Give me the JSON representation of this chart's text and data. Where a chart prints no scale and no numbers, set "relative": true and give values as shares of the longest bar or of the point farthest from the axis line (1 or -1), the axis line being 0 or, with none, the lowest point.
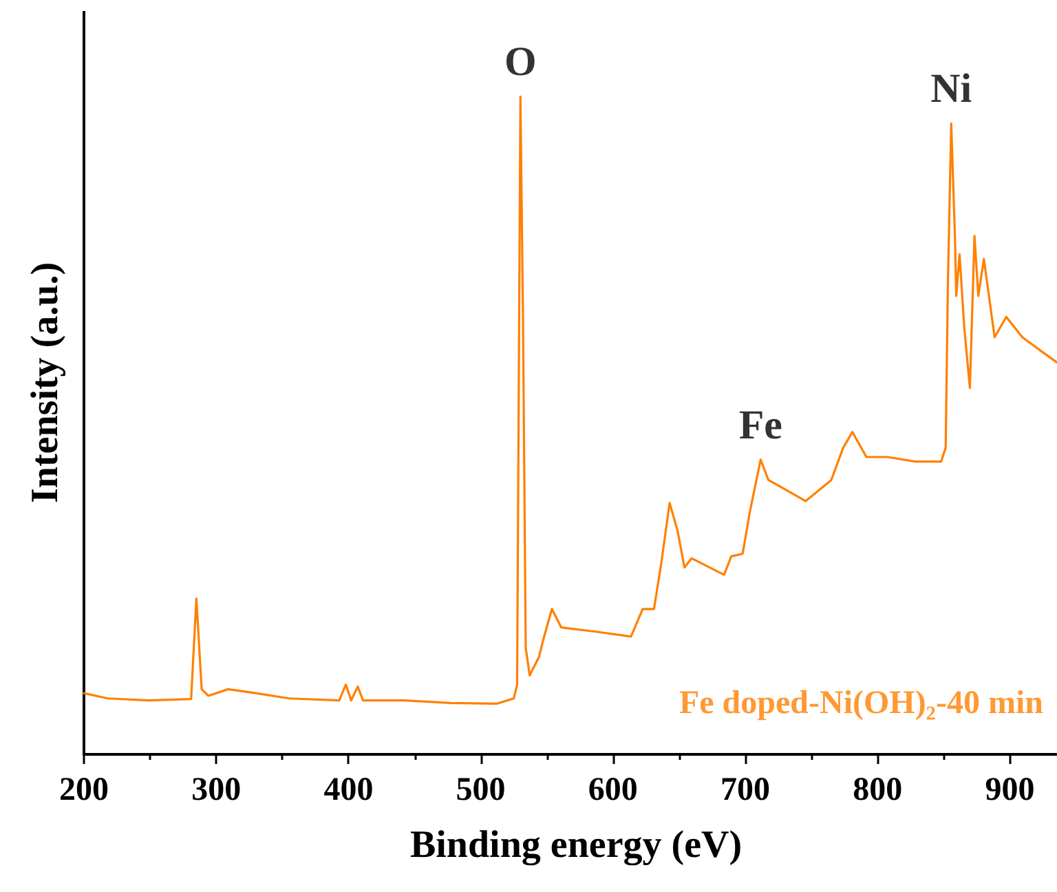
{
  "chart_data": {
    "type": "line",
    "xlabel": "Binding energy (eV)",
    "ylabel": "Intensity (a.u.)",
    "relative": true,
    "xlim": [
      200,
      944
    ],
    "xticks": [
      200,
      300,
      400,
      500,
      600,
      700,
      800,
      900
    ],
    "grid": false,
    "legend": false,
    "marker": "none",
    "line_style": "solid",
    "annotations": [
      {
        "text": "O",
        "x": 530,
        "y": 1.0
      },
      {
        "text": "Fe",
        "x": 711.6,
        "y": 0.448
      },
      {
        "text": "Ni",
        "x": 855.7,
        "y": 0.959
      }
    ],
    "series": [
      {
        "name": "Fe doped-Ni(OH)₂-40 min",
        "color": "#ff8000",
        "x": [
          200,
          218,
          249,
          281,
          285,
          289,
          294,
          309,
          330,
          355,
          393,
          398,
          402,
          407,
          411,
          442,
          477,
          512,
          525,
          527.5,
          529,
          530,
          532,
          534,
          537,
          544,
          547.5,
          553.8,
          560.8,
          589,
          613.6,
          622.4,
          631,
          636.5,
          642.8,
          648.8,
          654,
          659.4,
          684,
          689.4,
          698,
          703.4,
          711.6,
          717.5,
          730,
          745.7,
          765,
          774,
          781,
          791.6,
          807.5,
          828.6,
          848,
          851.5,
          853.2,
          855.7,
          858.5,
          859.5,
          862,
          865.6,
          869.8,
          873.3,
          876.2,
          880.4,
          888.5,
          897.3,
          909.5,
          923.7,
          943
        ],
        "values": [
          0.093,
          0.085,
          0.082,
          0.084,
          0.237,
          0.099,
          0.089,
          0.099,
          0.093,
          0.085,
          0.082,
          0.106,
          0.082,
          0.103,
          0.082,
          0.082,
          0.078,
          0.077,
          0.085,
          0.106,
          0.65,
          1.0,
          0.65,
          0.162,
          0.12,
          0.148,
          0.176,
          0.221,
          0.193,
          0.186,
          0.179,
          0.221,
          0.221,
          0.291,
          0.382,
          0.34,
          0.284,
          0.298,
          0.273,
          0.301,
          0.305,
          0.368,
          0.448,
          0.417,
          0.403,
          0.385,
          0.417,
          0.466,
          0.49,
          0.452,
          0.452,
          0.445,
          0.445,
          0.466,
          0.718,
          0.959,
          0.788,
          0.697,
          0.76,
          0.648,
          0.557,
          0.788,
          0.697,
          0.753,
          0.634,
          0.665,
          0.634,
          0.613,
          0.585
        ]
      }
    ]
  }
}
